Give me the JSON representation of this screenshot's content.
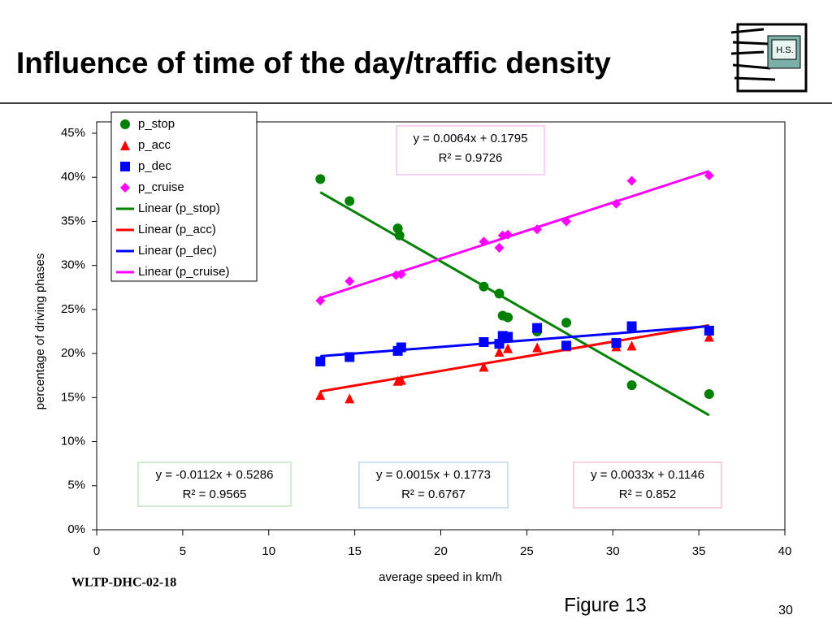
{
  "header": {
    "title": "Influence of time of the day/traffic density",
    "logo": "H.S."
  },
  "chart_data": {
    "type": "scatter",
    "xlabel": "average speed in km/h",
    "ylabel": "percentage of driving phases",
    "xlim": [
      0,
      40
    ],
    "xticks": [
      0,
      5,
      10,
      15,
      20,
      25,
      30,
      35,
      40
    ],
    "ylim": [
      0,
      45
    ],
    "yticks": [
      {
        "value": 0,
        "label": "0%"
      },
      {
        "value": 5,
        "label": "5%"
      },
      {
        "value": 10,
        "label": "10%"
      },
      {
        "value": 15,
        "label": "15%"
      },
      {
        "value": 20,
        "label": "20%"
      },
      {
        "value": 25,
        "label": "25%"
      },
      {
        "value": 30,
        "label": "30%"
      },
      {
        "value": 35,
        "label": "35%"
      },
      {
        "value": 40,
        "label": "40%"
      },
      {
        "value": 45,
        "label": "45%"
      }
    ],
    "legend": "upper left",
    "series": [
      {
        "name": "p_stop",
        "color": "#008000",
        "marker": "circle",
        "x": [
          13,
          14.7,
          17.5,
          17.6,
          22.5,
          23.4,
          23.6,
          23.9,
          25.6,
          27.3,
          30.2,
          31.1,
          35.6
        ],
        "values": [
          39.8,
          37.3,
          34.2,
          33.4,
          27.6,
          26.8,
          24.3,
          24.1,
          22.5,
          23.5,
          21.0,
          16.4,
          15.4
        ]
      },
      {
        "name": "p_acc",
        "color": "#ff0000",
        "marker": "triangle",
        "x": [
          13,
          14.7,
          17.5,
          17.7,
          22.5,
          23.4,
          23.9,
          25.6,
          27.3,
          30.2,
          31.1,
          35.6
        ],
        "values": [
          15.3,
          14.9,
          16.9,
          17.0,
          18.5,
          20.2,
          20.6,
          20.7,
          20.8,
          20.8,
          20.9,
          21.9
        ]
      },
      {
        "name": "p_dec",
        "color": "#0000ff",
        "marker": "square",
        "x": [
          13,
          14.7,
          17.5,
          17.7,
          22.5,
          23.4,
          23.6,
          23.9,
          25.6,
          27.3,
          30.2,
          31.1,
          35.6
        ],
        "values": [
          19.1,
          19.6,
          20.3,
          20.7,
          21.3,
          21.1,
          22.0,
          21.9,
          22.9,
          20.9,
          21.2,
          23.1,
          22.6
        ]
      },
      {
        "name": "p_cruise",
        "color": "#ff00ff",
        "marker": "diamond",
        "x": [
          13,
          14.7,
          17.4,
          17.7,
          22.5,
          23.4,
          23.6,
          23.9,
          25.6,
          27.3,
          30.2,
          31.1,
          35.6
        ],
        "values": [
          26.0,
          28.2,
          28.9,
          29.0,
          32.7,
          32.0,
          33.4,
          33.5,
          34.1,
          35.0,
          37.0,
          39.6,
          40.2
        ]
      },
      {
        "name": "Linear (p_stop)",
        "color": "#008000",
        "marker": "line",
        "x": [
          13,
          35.6
        ],
        "values": [
          38.3,
          13.0
        ]
      },
      {
        "name": "Linear (p_acc)",
        "color": "#ff0000",
        "marker": "line",
        "x": [
          13,
          35.6
        ],
        "values": [
          15.7,
          23.2
        ]
      },
      {
        "name": "Linear (p_dec)",
        "color": "#0000ff",
        "marker": "line",
        "x": [
          13,
          35.6
        ],
        "values": [
          19.7,
          23.1
        ]
      },
      {
        "name": "Linear (p_cruise)",
        "color": "#ff00ff",
        "marker": "line",
        "x": [
          13,
          35.6
        ],
        "values": [
          26.3,
          40.7
        ]
      }
    ],
    "annotations": [
      {
        "text": "y = 0.0064x + 0.1795",
        "r2": "R² = 0.9726",
        "color": "#f0a0f0"
      },
      {
        "text": "y = -0.0112x + 0.5286",
        "r2": "R² = 0.9565",
        "color": "#a0d8a0"
      },
      {
        "text": "y = 0.0015x + 0.1773",
        "r2": "R² = 0.6767",
        "color": "#a0c0f0"
      },
      {
        "text": "y = 0.0033x + 0.1146",
        "r2": "R² = 0.852",
        "color": "#f0a0c0"
      }
    ]
  },
  "footer": {
    "code": "WLTP-DHC-02-18",
    "figure": "Figure 13",
    "page": "30"
  }
}
